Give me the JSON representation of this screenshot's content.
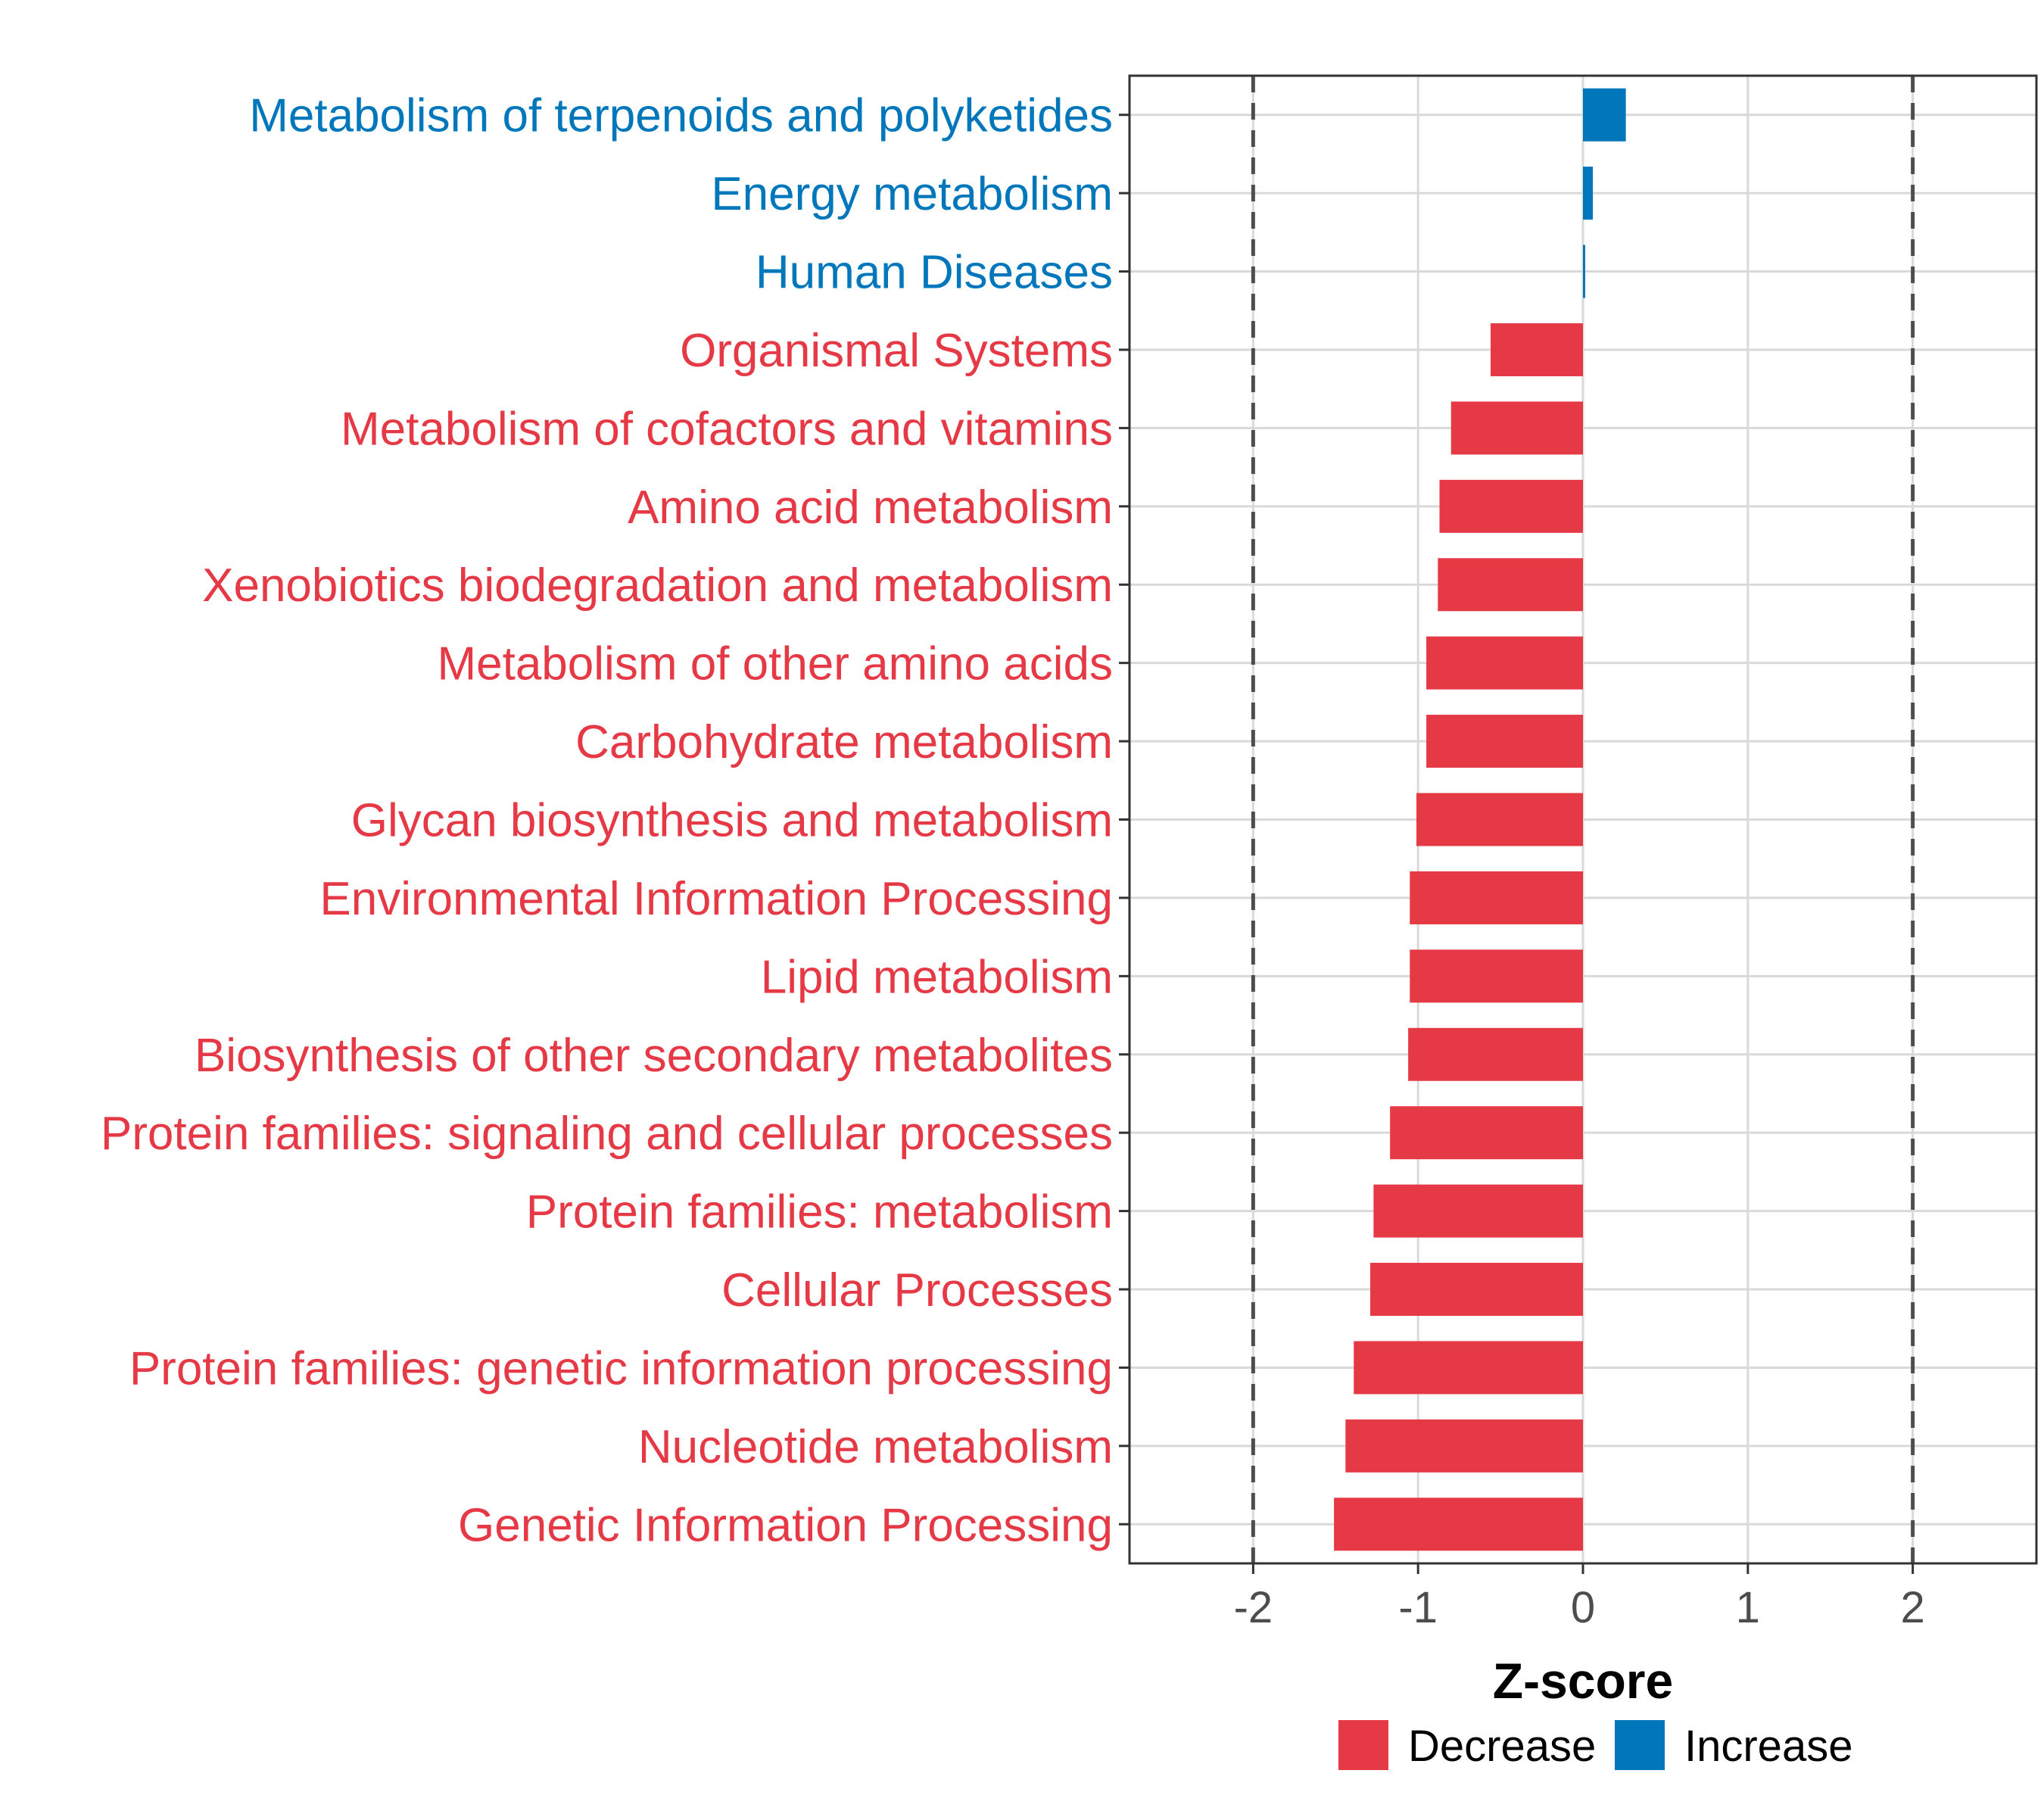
{
  "chart_data": {
    "type": "bar",
    "orientation": "horizontal",
    "xlabel": "Z-score",
    "xlim": [
      -2.75,
      2.75
    ],
    "xticks": [
      -2,
      -1,
      0,
      1,
      2
    ],
    "xtick_labels": [
      "-2",
      "-1",
      "0",
      "1",
      "2"
    ],
    "reference_lines": [
      -2,
      2
    ],
    "grid": true,
    "categories": [
      "Metabolism of terpenoids and polyketides",
      "Energy metabolism",
      "Human Diseases",
      "Organismal Systems",
      "Metabolism of cofactors and vitamins",
      "Amino acid metabolism",
      "Xenobiotics biodegradation and metabolism",
      "Metabolism of other amino acids",
      "Carbohydrate metabolism",
      "Glycan biosynthesis and metabolism",
      "Environmental Information Processing",
      "Lipid metabolism",
      "Biosynthesis of other secondary metabolites",
      "Protein families: signaling and cellular processes",
      "Protein families: metabolism",
      "Cellular Processes",
      "Protein families: genetic information processing",
      "Nucleotide metabolism",
      "Genetic Information Processing"
    ],
    "values": [
      0.26,
      0.06,
      0.01,
      -0.56,
      -0.8,
      -0.87,
      -0.88,
      -0.95,
      -0.95,
      -1.01,
      -1.05,
      -1.05,
      -1.06,
      -1.17,
      -1.27,
      -1.29,
      -1.39,
      -1.44,
      -1.51
    ],
    "groups": [
      "Increase",
      "Increase",
      "Increase",
      "Decrease",
      "Decrease",
      "Decrease",
      "Decrease",
      "Decrease",
      "Decrease",
      "Decrease",
      "Decrease",
      "Decrease",
      "Decrease",
      "Decrease",
      "Decrease",
      "Decrease",
      "Decrease",
      "Decrease",
      "Decrease"
    ],
    "legend": {
      "position": "bottom",
      "entries": [
        {
          "label": "Decrease",
          "color": "#e63946"
        },
        {
          "label": "Increase",
          "color": "#0077bb"
        }
      ]
    }
  },
  "colors": {
    "Decrease": "#e63946",
    "Increase": "#0077bb",
    "grid": "#d9d9d9",
    "reference_line": "#4d4d4d",
    "panel_border": "#333333"
  }
}
